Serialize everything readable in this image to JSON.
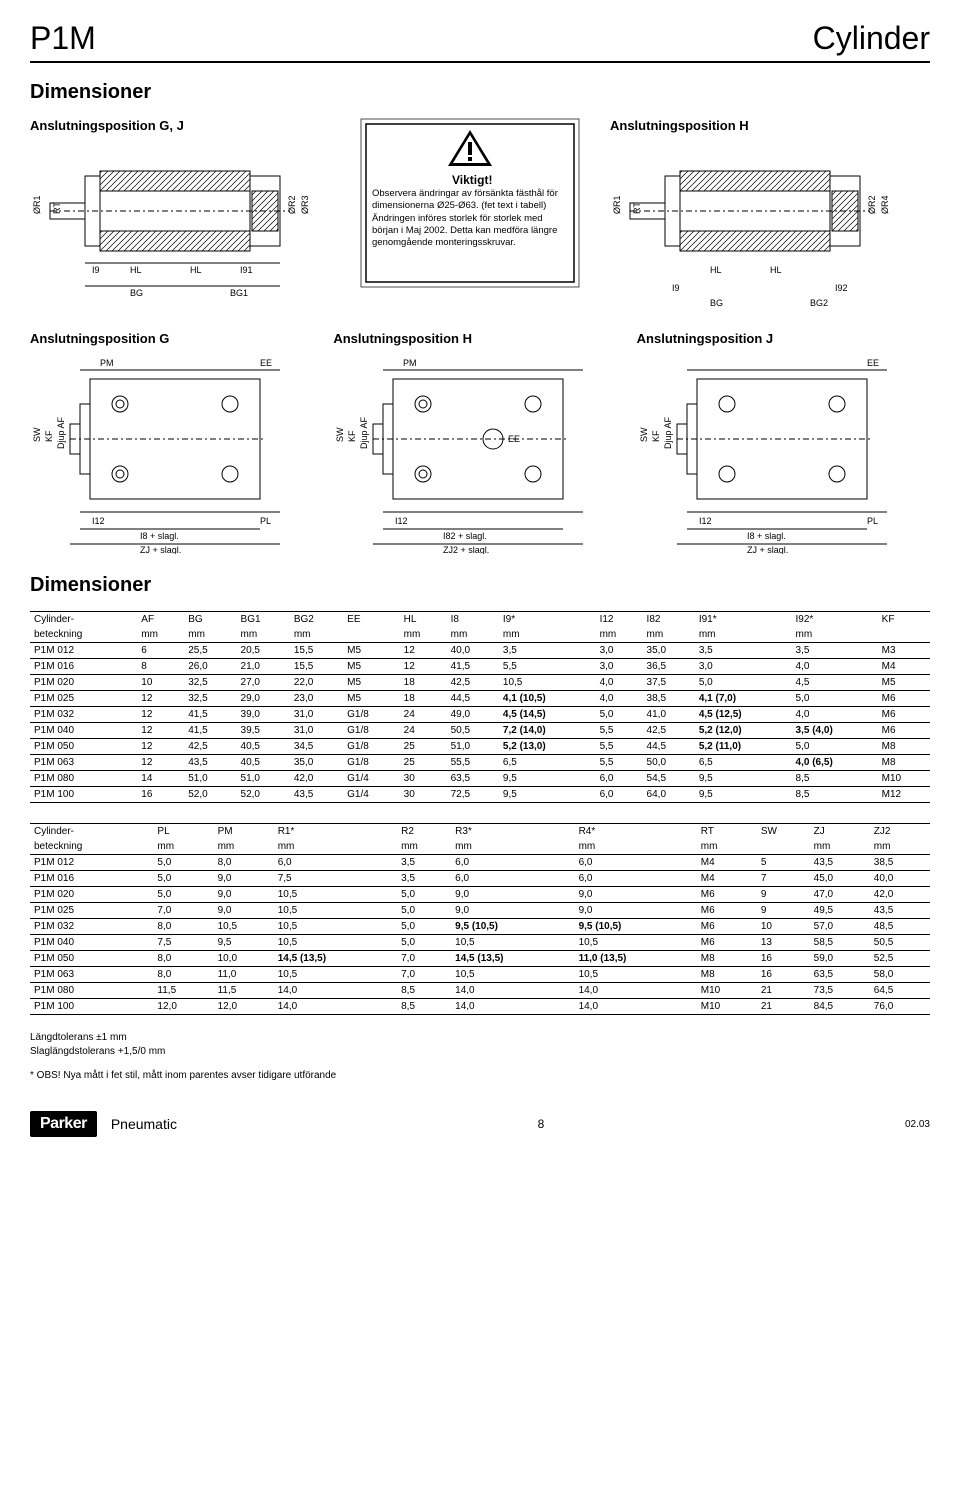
{
  "header": {
    "left": "P1M",
    "right": "Cylinder"
  },
  "section_title": "Dimensioner",
  "top_titles": {
    "left": "Anslutningsposition G, J",
    "right": "Anslutningsposition H"
  },
  "warning": {
    "title": "Viktigt!",
    "body": "Observera ändringar av försänkta fästhål för dimensionerna Ø25-Ø63. (fet text i tabell) Ändringen införes storlek för storlek med början i Maj 2002. Detta kan medföra längre genomgående monteringsskruvar."
  },
  "mid_titles": {
    "g": "Anslutningsposition G",
    "h": "Anslutningsposition H",
    "j": "Anslutningsposition J"
  },
  "dim_labels": {
    "OR1": "ØR1",
    "OR2": "ØR2",
    "OR3": "ØR3",
    "OR4": "ØR4",
    "RT": "RT",
    "HL": "HL",
    "BG": "BG",
    "BG1": "BG1",
    "BG2": "BG2",
    "I9": "I9",
    "I91": "I91",
    "I92": "I92",
    "PM": "PM",
    "EE": "EE",
    "SW": "SW",
    "KF": "KF",
    "DjupAF": "Djup AF",
    "I12": "I12",
    "PL": "PL",
    "I8slag": "I8 + slagl.",
    "ZJslag": "ZJ + slagl.",
    "I82slag": "I82 + slagl.",
    "ZJ2slag": "ZJ2 + slagl."
  },
  "table1": {
    "head1": [
      "Cylinder-",
      "AF",
      "BG",
      "BG1",
      "BG2",
      "EE",
      "HL",
      "I8",
      "I9*",
      "I12",
      "I82",
      "I91*",
      "I92*",
      "KF"
    ],
    "head2": [
      "beteckning",
      "mm",
      "mm",
      "mm",
      "mm",
      "",
      "mm",
      "mm",
      "mm",
      "mm",
      "mm",
      "mm",
      "mm",
      ""
    ],
    "rows": [
      [
        "P1M 012",
        "6",
        "25,5",
        "20,5",
        "15,5",
        "M5",
        "12",
        "40,0",
        "3,5",
        "3,0",
        "35,0",
        "3,5",
        "3,5",
        "M3"
      ],
      [
        "P1M 016",
        "8",
        "26,0",
        "21,0",
        "15,5",
        "M5",
        "12",
        "41,5",
        "5,5",
        "3,0",
        "36,5",
        "3,0",
        "4,0",
        "M4"
      ],
      [
        "P1M 020",
        "10",
        "32,5",
        "27,0",
        "22,0",
        "M5",
        "18",
        "42,5",
        "10,5",
        "4,0",
        "37,5",
        "5,0",
        "4,5",
        "M5"
      ],
      [
        "P1M 025",
        "12",
        "32,5",
        "29,0",
        "23,0",
        "M5",
        "18",
        "44,5",
        "4,1 (10,5)",
        "4,0",
        "38,5",
        "4,1 (7,0)",
        "5,0",
        "M6"
      ],
      [
        "P1M 032",
        "12",
        "41,5",
        "39,0",
        "31,0",
        "G1/8",
        "24",
        "49,0",
        "4,5 (14,5)",
        "5,0",
        "41,0",
        "4,5 (12,5)",
        "4,0",
        "M6"
      ],
      [
        "P1M 040",
        "12",
        "41,5",
        "39,5",
        "31,0",
        "G1/8",
        "24",
        "50,5",
        "7,2 (14,0)",
        "5,5",
        "42,5",
        "5,2 (12,0)",
        "3,5 (4,0)",
        "M6"
      ],
      [
        "P1M 050",
        "12",
        "42,5",
        "40,5",
        "34,5",
        "G1/8",
        "25",
        "51,0",
        "5,2 (13,0)",
        "5,5",
        "44,5",
        "5,2 (11,0)",
        "5,0",
        "M8"
      ],
      [
        "P1M 063",
        "12",
        "43,5",
        "40,5",
        "35,0",
        "G1/8",
        "25",
        "55,5",
        "6,5",
        "5,5",
        "50,0",
        "6,5",
        "4,0 (6,5)",
        "M8"
      ],
      [
        "P1M 080",
        "14",
        "51,0",
        "51,0",
        "42,0",
        "G1/4",
        "30",
        "63,5",
        "9,5",
        "6,0",
        "54,5",
        "9,5",
        "8,5",
        "M10"
      ],
      [
        "P1M 100",
        "16",
        "52,0",
        "52,0",
        "43,5",
        "G1/4",
        "30",
        "72,5",
        "9,5",
        "6,0",
        "64,0",
        "9,5",
        "8,5",
        "M12"
      ]
    ],
    "bold_cells": [
      [
        3,
        8
      ],
      [
        3,
        11
      ],
      [
        4,
        8
      ],
      [
        4,
        11
      ],
      [
        5,
        8
      ],
      [
        5,
        11
      ],
      [
        5,
        12
      ],
      [
        6,
        8
      ],
      [
        6,
        11
      ],
      [
        7,
        12
      ]
    ]
  },
  "table2": {
    "head1": [
      "Cylinder-",
      "PL",
      "PM",
      "R1*",
      "R2",
      "R3*",
      "R4*",
      "RT",
      "SW",
      "ZJ",
      "ZJ2"
    ],
    "head2": [
      "beteckning",
      "mm",
      "mm",
      "mm",
      "mm",
      "mm",
      "mm",
      "mm",
      "",
      "mm",
      "mm"
    ],
    "rows": [
      [
        "P1M 012",
        "5,0",
        "8,0",
        "6,0",
        "3,5",
        "6,0",
        "6,0",
        "M4",
        "5",
        "43,5",
        "38,5"
      ],
      [
        "P1M 016",
        "5,0",
        "9,0",
        "7,5",
        "3,5",
        "6,0",
        "6,0",
        "M4",
        "7",
        "45,0",
        "40,0"
      ],
      [
        "P1M 020",
        "5,0",
        "9,0",
        "10,5",
        "5,0",
        "9,0",
        "9,0",
        "M6",
        "9",
        "47,0",
        "42,0"
      ],
      [
        "P1M 025",
        "7,0",
        "9,0",
        "10,5",
        "5,0",
        "9,0",
        "9,0",
        "M6",
        "9",
        "49,5",
        "43,5"
      ],
      [
        "P1M 032",
        "8,0",
        "10,5",
        "10,5",
        "5,0",
        "9,5 (10,5)",
        "9,5 (10,5)",
        "M6",
        "10",
        "57,0",
        "48,5"
      ],
      [
        "P1M 040",
        "7,5",
        "9,5",
        "10,5",
        "5,0",
        "10,5",
        "10,5",
        "M6",
        "13",
        "58,5",
        "50,5"
      ],
      [
        "P1M 050",
        "8,0",
        "10,0",
        "14,5 (13,5)",
        "7,0",
        "14,5 (13,5)",
        "11,0 (13,5)",
        "M8",
        "16",
        "59,0",
        "52,5"
      ],
      [
        "P1M 063",
        "8,0",
        "11,0",
        "10,5",
        "7,0",
        "10,5",
        "10,5",
        "M8",
        "16",
        "63,5",
        "58,0"
      ],
      [
        "P1M 080",
        "11,5",
        "11,5",
        "14,0",
        "8,5",
        "14,0",
        "14,0",
        "M10",
        "21",
        "73,5",
        "64,5"
      ],
      [
        "P1M 100",
        "12,0",
        "12,0",
        "14,0",
        "8,5",
        "14,0",
        "14,0",
        "M10",
        "21",
        "84,5",
        "76,0"
      ]
    ],
    "bold_cells": [
      [
        4,
        5
      ],
      [
        4,
        6
      ],
      [
        6,
        3
      ],
      [
        6,
        5
      ],
      [
        6,
        6
      ]
    ]
  },
  "footnotes": {
    "l1": "Längdtolerans ±1 mm",
    "l2": "Slaglängdstolerans +1,5/0 mm",
    "l3": "* OBS! Nya mått i fet stil, mått inom parentes avser tidigare utförande"
  },
  "footer": {
    "logo": "Parker",
    "brand": "Pneumatic",
    "page": "8",
    "date": "02.03"
  },
  "colors": {
    "stroke": "#000000",
    "hatch": "#000000",
    "bg": "#ffffff",
    "dashed": "#000000"
  }
}
